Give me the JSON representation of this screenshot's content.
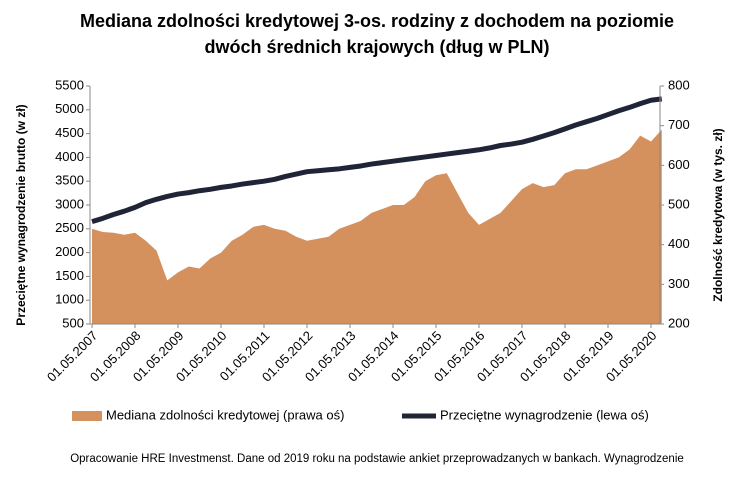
{
  "chart_data": {
    "type": "area-line",
    "title": [
      "Mediana zdolności kredytowej 3-os. rodziny z dochodem na poziomie",
      "dwóch średnich krajowych (dług w PLN)"
    ],
    "ylabel": "Przeciętne wynagrodzenie brutto (w zł)",
    "y2label": "Zdolność kredytowa (w tys. zł)",
    "categories": [
      "01.05.2007",
      null,
      null,
      null,
      "01.05.2008",
      null,
      null,
      null,
      "01.05.2009",
      null,
      null,
      null,
      "01.05.2010",
      null,
      null,
      null,
      "01.05.2011",
      null,
      null,
      null,
      "01.05.2012",
      null,
      null,
      null,
      "01.05.2013",
      null,
      null,
      null,
      "01.05.2014",
      null,
      null,
      null,
      "01.05.2015",
      null,
      null,
      null,
      "01.05.2016",
      null,
      null,
      null,
      "01.05.2017",
      null,
      null,
      null,
      "01.05.2018",
      null,
      null,
      null,
      "01.05.2019",
      null,
      null,
      null,
      "01.05.2020",
      null
    ],
    "series": [
      {
        "name": "Mediana zdolności kredytowej (prawa oś)",
        "color": "#d4915e",
        "axis": "y2",
        "kind": "area",
        "values": [
          440,
          432,
          430,
          425,
          430,
          410,
          385,
          310,
          330,
          345,
          340,
          365,
          380,
          410,
          425,
          445,
          450,
          440,
          435,
          420,
          410,
          415,
          420,
          440,
          450,
          460,
          480,
          490,
          500,
          500,
          520,
          560,
          575,
          580,
          530,
          480,
          450,
          465,
          480,
          510,
          540,
          555,
          545,
          550,
          580,
          590,
          590,
          600,
          610,
          620,
          640,
          675,
          660,
          690
        ]
      },
      {
        "name": "Przeciętne wynagrodzenie (lewa oś)",
        "color": "#1f2537",
        "axis": "y",
        "kind": "line",
        "values": [
          2650,
          2720,
          2800,
          2870,
          2950,
          3050,
          3120,
          3180,
          3230,
          3260,
          3300,
          3330,
          3370,
          3400,
          3440,
          3470,
          3500,
          3540,
          3600,
          3650,
          3700,
          3720,
          3740,
          3760,
          3790,
          3820,
          3860,
          3890,
          3920,
          3950,
          3980,
          4010,
          4040,
          4070,
          4100,
          4130,
          4160,
          4200,
          4250,
          4280,
          4320,
          4380,
          4450,
          4520,
          4600,
          4680,
          4750,
          4820,
          4900,
          4980,
          5050,
          5130,
          5200,
          5230
        ]
      }
    ],
    "ylim": [
      500,
      5500
    ],
    "yticks": [
      500,
      1000,
      1500,
      2000,
      2500,
      3000,
      3500,
      4000,
      4500,
      5000,
      5500
    ],
    "y2lim": [
      200,
      800
    ],
    "y2ticks": [
      200,
      300,
      400,
      500,
      600,
      700,
      800
    ],
    "grid": false,
    "note": "Opracowanie HRE Investmenst. Dane od 2019 roku na podstawie ankiet przeprowadzanych w bankach. Wynagrodzenie"
  }
}
